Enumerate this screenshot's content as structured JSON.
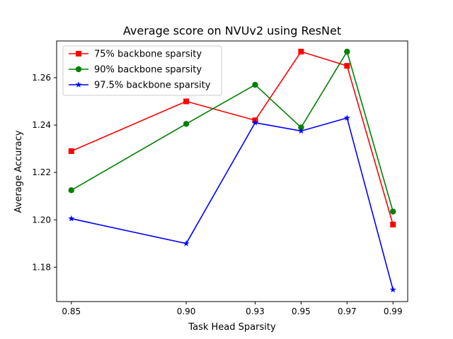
{
  "chart_data": {
    "type": "line",
    "title": "Average score on NVUv2 using ResNet",
    "xlabel": "Task Head Sparsity",
    "ylabel": "Average Accuracy",
    "x": [
      0.85,
      0.9,
      0.93,
      0.95,
      0.97,
      0.99
    ],
    "x_tick_labels": [
      "0.85",
      "0.90",
      "0.93",
      "0.95",
      "0.97",
      "0.99"
    ],
    "xlim": [
      0.8436,
      0.9964
    ],
    "ylim": [
      1.1655,
      1.2755
    ],
    "y_ticks": [
      1.18,
      1.2,
      1.22,
      1.24,
      1.26
    ],
    "y_tick_labels": [
      "1.18",
      "1.20",
      "1.22",
      "1.24",
      "1.26"
    ],
    "grid": false,
    "legend_position": "upper-left",
    "series": [
      {
        "name": "75% backbone sparsity",
        "color": "#ff0000",
        "marker": "square",
        "values": [
          1.229,
          1.25,
          1.242,
          1.271,
          1.265,
          1.198
        ]
      },
      {
        "name": "90% backbone sparsity",
        "color": "#008000",
        "marker": "circle",
        "values": [
          1.2125,
          1.2405,
          1.257,
          1.239,
          1.271,
          1.2035
        ]
      },
      {
        "name": "97.5% backbone sparsity",
        "color": "#0000ff",
        "marker": "star",
        "values": [
          1.2005,
          1.19,
          1.241,
          1.2375,
          1.243,
          1.1705
        ]
      }
    ]
  }
}
